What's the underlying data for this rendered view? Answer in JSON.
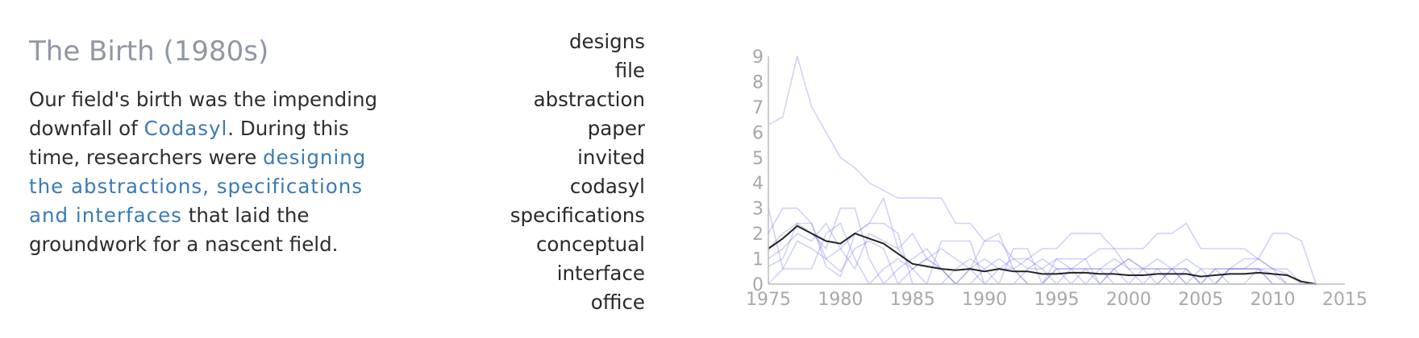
{
  "story": {
    "title": "The Birth (1980s)",
    "p1": "Our field's birth was the impending downfall of ",
    "link1": "Codasyl",
    "p2": ". During this time, researchers were ",
    "link2": "designing the abstractions, specifications and interfaces",
    "p3": " that laid the groundwork for a nascent field."
  },
  "colors": {
    "title": "#8f97a6",
    "text": "#2e2e2e",
    "highlight": "#3a7ab5",
    "term_line": "#7b7bea",
    "average_line": "#222222",
    "axis": "#bbbbbb",
    "tick": "#a8a8a8"
  },
  "terms": [
    "designs",
    "file",
    "abstraction",
    "paper",
    "invited",
    "codasyl",
    "specifications",
    "conceptual",
    "interface",
    "office"
  ],
  "chart_data": {
    "type": "line",
    "xlim": [
      1975,
      2015
    ],
    "ylim": [
      0,
      9
    ],
    "x_ticks": [
      1975,
      1980,
      1985,
      1990,
      1995,
      2000,
      2005,
      2010,
      2015
    ],
    "y_ticks": [
      0,
      1,
      2,
      3,
      4,
      5,
      6,
      7,
      8,
      9
    ],
    "grid": false,
    "series": [
      {
        "x": [
          1975,
          1976,
          1977,
          1978,
          1979,
          1980,
          1981,
          1982,
          1983,
          1984,
          1985,
          1986,
          1987,
          1988,
          1989,
          1990,
          1991,
          1992,
          1993,
          1994,
          1995,
          1996,
          1997,
          1998,
          1999,
          2000,
          2001,
          2002,
          2003,
          2004,
          2005,
          2006,
          2007,
          2008,
          2009,
          2010,
          2011,
          2012,
          2013
        ],
        "y": [
          6.3,
          6.6,
          9.0,
          7.0,
          6.0,
          5.0,
          4.6,
          4.0,
          3.7,
          3.4,
          3.4,
          3.4,
          3.4,
          2.4,
          2.4,
          1.7,
          1.7,
          1.0,
          1.0,
          1.4,
          1.4,
          2.0,
          2.0,
          2.0,
          1.4,
          1.4,
          1.4,
          2.0,
          2.0,
          2.4,
          1.4,
          1.4,
          1.4,
          1.4,
          1.0,
          2.0,
          2.0,
          1.7,
          0.0
        ]
      },
      {
        "x": [
          1975,
          1976,
          1977,
          1978,
          1979,
          1980,
          1981,
          1982,
          1983,
          1984,
          1985,
          1986,
          1987,
          1988,
          1989,
          1990,
          1991,
          1992,
          1993,
          1994,
          1995,
          1996,
          1997,
          1998,
          1999,
          2000,
          2001,
          2002,
          2003,
          2004,
          2005,
          2006,
          2007,
          2008,
          2009,
          2010,
          2011,
          2012,
          2013
        ],
        "y": [
          2.0,
          3.0,
          3.0,
          2.4,
          1.0,
          0.5,
          1.4,
          1.7,
          1.4,
          0.0,
          0.6,
          1.0,
          0.6,
          0.0,
          0.6,
          1.7,
          2.0,
          0.6,
          0.0,
          0.0,
          0.6,
          0.6,
          1.0,
          0.0,
          0.6,
          1.0,
          0.6,
          0.0,
          0.6,
          1.0,
          0.6,
          0.0,
          0.6,
          0.6,
          1.0,
          0.6,
          0.4,
          0.0,
          0.0
        ]
      },
      {
        "x": [
          1975,
          1976,
          1977,
          1978,
          1979,
          1980,
          1981,
          1982,
          1983,
          1984,
          1985,
          1986,
          1987,
          1988,
          1989,
          1990,
          1991,
          1992,
          1993,
          1994,
          1995,
          1996,
          1997,
          1998,
          1999,
          2000,
          2001,
          2002,
          2003,
          2004,
          2005,
          2006,
          2007,
          2008,
          2009,
          2010,
          2011,
          2012,
          2013
        ],
        "y": [
          0.7,
          1.0,
          2.4,
          2.4,
          0.7,
          0.3,
          2.0,
          2.4,
          2.4,
          2.0,
          0.0,
          0.0,
          1.7,
          1.7,
          1.7,
          0.0,
          0.0,
          1.4,
          1.4,
          0.0,
          1.0,
          1.0,
          1.0,
          1.4,
          1.4,
          0.6,
          0.0,
          0.0,
          0.6,
          0.6,
          0.0,
          0.0,
          0.6,
          1.0,
          1.0,
          0.6,
          0.6,
          0.0,
          0.0
        ]
      },
      {
        "x": [
          1975,
          1976,
          1977,
          1978,
          1979,
          1980,
          1981,
          1982,
          1983,
          1984,
          1985,
          1986,
          1987,
          1988,
          1989,
          1990,
          1991,
          1992,
          1993,
          1994,
          1995,
          1996,
          1997,
          1998,
          1999,
          2000,
          2001,
          2002,
          2003,
          2004,
          2005,
          2006,
          2007,
          2008,
          2009,
          2010,
          2011,
          2012,
          2013
        ],
        "y": [
          1.4,
          2.0,
          2.4,
          2.0,
          1.4,
          3.0,
          3.0,
          1.0,
          0.0,
          0.6,
          1.0,
          1.4,
          0.6,
          0.0,
          0.6,
          1.0,
          0.6,
          1.0,
          0.6,
          1.0,
          0.6,
          0.0,
          0.6,
          0.6,
          1.0,
          0.6,
          0.6,
          1.0,
          0.6,
          0.0,
          0.0,
          0.6,
          0.6,
          0.6,
          0.6,
          0.0,
          0.0,
          0.0,
          0.0
        ]
      },
      {
        "x": [
          1975,
          1976,
          1977,
          1978,
          1979,
          1980,
          1981,
          1982,
          1983,
          1984,
          1985,
          1986,
          1987,
          1988,
          1989,
          1990,
          1991,
          1992,
          1993,
          1994,
          1995,
          1996,
          1997,
          1998,
          1999,
          2000,
          2001,
          2002,
          2003,
          2004,
          2005,
          2006,
          2007,
          2008,
          2009,
          2010,
          2011,
          2012,
          2013
        ],
        "y": [
          0.0,
          0.6,
          1.7,
          1.4,
          1.0,
          1.4,
          2.0,
          2.4,
          3.4,
          1.4,
          2.0,
          1.0,
          0.6,
          0.0,
          0.0,
          0.6,
          1.0,
          0.6,
          1.0,
          0.6,
          0.0,
          0.6,
          0.6,
          0.0,
          0.6,
          1.0,
          0.6,
          0.6,
          0.0,
          0.6,
          0.0,
          0.6,
          0.6,
          0.6,
          0.6,
          0.4,
          0.0,
          0.0,
          0.0
        ]
      },
      {
        "x": [
          1975,
          1976,
          1977,
          1978,
          1979,
          1980,
          1981,
          1982,
          1983,
          1984,
          1985,
          1986,
          1987,
          1988,
          1989,
          1990,
          1991,
          1992,
          1993,
          1994,
          1995,
          1996,
          1997,
          1998,
          1999,
          2000,
          2001,
          2002,
          2003,
          2004,
          2005,
          2006,
          2007,
          2008,
          2009,
          2010,
          2011,
          2012,
          2013
        ],
        "y": [
          3.0,
          0.6,
          0.6,
          0.6,
          2.0,
          2.4,
          1.0,
          0.0,
          0.6,
          1.0,
          0.6,
          0.0,
          0.0,
          0.6,
          1.0,
          0.6,
          0.0,
          0.0,
          0.6,
          0.6,
          1.0,
          0.6,
          0.0,
          0.6,
          0.6,
          0.0,
          0.0,
          0.6,
          0.6,
          0.0,
          0.6,
          0.6,
          0.0,
          0.0,
          0.6,
          0.6,
          0.0,
          0.0,
          0.0
        ]
      },
      {
        "x": [
          1975,
          1976,
          1977,
          1978,
          1979,
          1980,
          1981,
          1982,
          1983,
          1984,
          1985,
          1986,
          1987,
          1988,
          1989,
          1990,
          1991,
          1992,
          1993,
          1994,
          1995,
          1996,
          1997,
          1998,
          1999,
          2000,
          2001,
          2002,
          2003,
          2004,
          2005,
          2006,
          2007,
          2008,
          2009,
          2010,
          2011,
          2012,
          2013
        ],
        "y": [
          1.0,
          1.4,
          2.0,
          1.7,
          2.4,
          1.4,
          0.6,
          2.0,
          1.7,
          1.4,
          0.6,
          1.0,
          1.4,
          1.0,
          0.6,
          0.0,
          0.6,
          0.6,
          0.0,
          0.0,
          0.6,
          0.6,
          0.6,
          0.6,
          0.0,
          0.0,
          0.6,
          0.6,
          0.6,
          0.6,
          0.0,
          0.0,
          0.6,
          0.6,
          0.6,
          0.0,
          0.0,
          0.0,
          0.0
        ]
      }
    ],
    "average": {
      "x": [
        1975,
        1976,
        1977,
        1978,
        1979,
        1980,
        1981,
        1982,
        1983,
        1984,
        1985,
        1986,
        1987,
        1988,
        1989,
        1990,
        1991,
        1992,
        1993,
        1994,
        1995,
        1996,
        1997,
        1998,
        1999,
        2000,
        2001,
        2002,
        2003,
        2004,
        2005,
        2006,
        2007,
        2008,
        2009,
        2010,
        2011,
        2012,
        2013
      ],
      "y": [
        1.4,
        1.8,
        2.3,
        2.0,
        1.7,
        1.6,
        2.0,
        1.8,
        1.6,
        1.2,
        0.8,
        0.7,
        0.6,
        0.55,
        0.6,
        0.5,
        0.6,
        0.5,
        0.5,
        0.4,
        0.4,
        0.45,
        0.45,
        0.4,
        0.4,
        0.35,
        0.35,
        0.4,
        0.4,
        0.4,
        0.3,
        0.35,
        0.4,
        0.4,
        0.45,
        0.4,
        0.35,
        0.1,
        0.0
      ]
    }
  }
}
